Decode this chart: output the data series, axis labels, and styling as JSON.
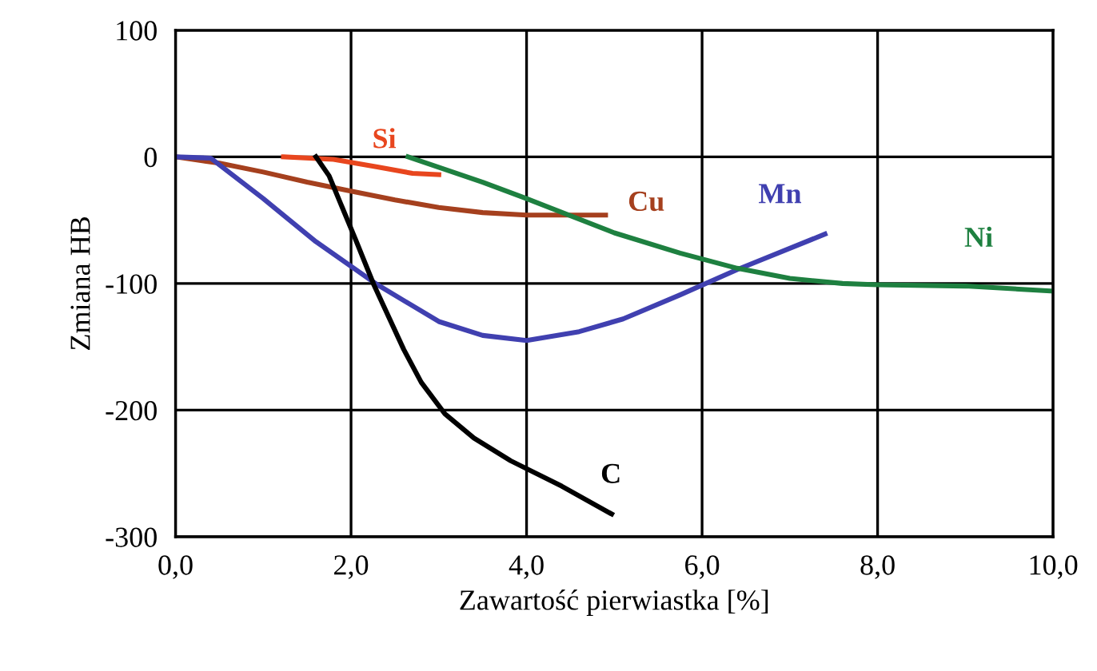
{
  "chart_data": {
    "type": "line",
    "xlabel": "Zawartość pierwiastka [%]",
    "ylabel": "Zmiana HB",
    "xlim": [
      0,
      10
    ],
    "ylim": [
      -300,
      100
    ],
    "xticks": [
      {
        "value": 0,
        "label": "0,0"
      },
      {
        "value": 2,
        "label": "2,0"
      },
      {
        "value": 4,
        "label": "4,0"
      },
      {
        "value": 6,
        "label": "6,0"
      },
      {
        "value": 8,
        "label": "8,0"
      },
      {
        "value": 10,
        "label": "10,0"
      }
    ],
    "yticks": [
      -300,
      -200,
      -100,
      0,
      100
    ],
    "grid": true,
    "legend": false,
    "marker": "none",
    "line_style": "solid",
    "series": [
      {
        "name": "Si",
        "color": "#e8461e",
        "x": [
          1.23,
          1.8,
          2.3,
          2.7,
          3.0
        ],
        "values": [
          0,
          -2,
          -8,
          -13,
          -14
        ]
      },
      {
        "name": "Cu",
        "color": "#a5401e",
        "x": [
          0,
          0.5,
          1,
          1.5,
          1.92,
          2.5,
          3,
          3.5,
          4,
          4.9
        ],
        "values": [
          0,
          -5,
          -12,
          -20,
          -26,
          -34,
          -40,
          -44,
          -46,
          -46
        ]
      },
      {
        "name": "Mn",
        "color": "#4040b0",
        "x": [
          0,
          0.4,
          1.0,
          1.6,
          2.3,
          3.0,
          3.5,
          4.0,
          4.6,
          5.1,
          5.75,
          6.4,
          7.4
        ],
        "values": [
          0,
          -1,
          -33,
          -67,
          -101,
          -130,
          -141,
          -145,
          -138,
          -128,
          -109,
          -89,
          -61
        ]
      },
      {
        "name": "Ni",
        "color": "#1e8040",
        "x": [
          2.65,
          3.5,
          4,
          5,
          5.75,
          6.4,
          7,
          7.6,
          8,
          9,
          10
        ],
        "values": [
          0,
          -20,
          -33,
          -60,
          -76,
          -88,
          -96,
          -100,
          -101,
          -102,
          -106
        ]
      },
      {
        "name": "C",
        "color": "#000000",
        "x": [
          1.6,
          1.75,
          1.9,
          2.05,
          2.26,
          2.6,
          2.8,
          3.07,
          3.4,
          3.82,
          4.4,
          4.97
        ],
        "values": [
          0,
          -15,
          -40,
          -65,
          -101,
          -152,
          -178,
          -203,
          -222,
          -240,
          -260,
          -282
        ]
      }
    ]
  }
}
